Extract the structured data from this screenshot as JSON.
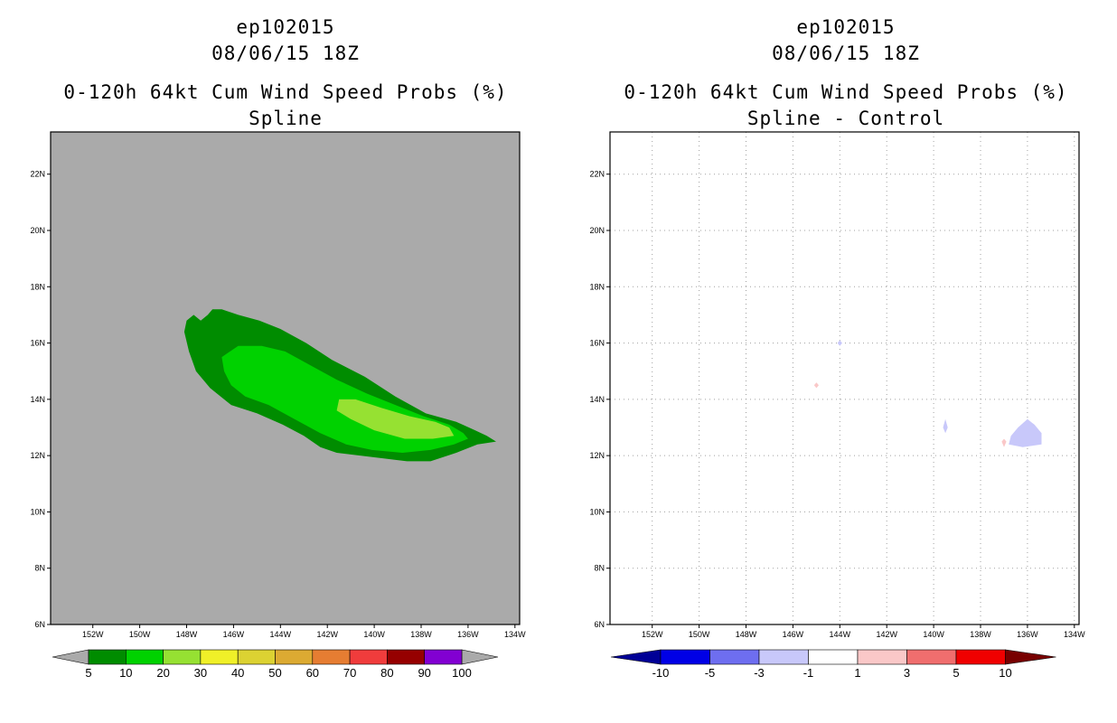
{
  "chart_data": [
    {
      "type": "heatmap",
      "storm_id": "ep102015",
      "date": "08/06/15 18Z",
      "title": "0-120h 64kt Cum Wind Speed Probs (%)",
      "subtitle": "Spline",
      "x_ticks": [
        "152W",
        "150W",
        "148W",
        "146W",
        "144W",
        "142W",
        "140W",
        "138W",
        "136W",
        "134W"
      ],
      "x_values": [
        -152,
        -150,
        -148,
        -146,
        -144,
        -142,
        -140,
        -138,
        -136,
        -134
      ],
      "y_ticks": [
        "6N",
        "8N",
        "10N",
        "12N",
        "14N",
        "16N",
        "18N",
        "20N",
        "22N"
      ],
      "y_values": [
        6,
        8,
        10,
        12,
        14,
        16,
        18,
        20,
        22
      ],
      "xlim": [
        -153.8,
        -133.8
      ],
      "ylim": [
        6,
        23.5
      ],
      "background_color": "#aaaaaa",
      "colorbar": {
        "labels": [
          "5",
          "10",
          "20",
          "30",
          "40",
          "50",
          "60",
          "70",
          "80",
          "90",
          "100"
        ],
        "colors": [
          "#008c00",
          "#00d200",
          "#96e132",
          "#f0f028",
          "#dcd232",
          "#dcaa32",
          "#e67d32",
          "#f03c3c",
          "#960000",
          "#8200d2"
        ],
        "end_color": "#aaaaaa"
      },
      "contours": [
        {
          "level": "5-10",
          "color": "#008c00",
          "points": [
            [
              -148.0,
              16.8
            ],
            [
              -147.7,
              17.0
            ],
            [
              -147.4,
              16.8
            ],
            [
              -147.1,
              17.0
            ],
            [
              -146.9,
              17.2
            ],
            [
              -146.5,
              17.2
            ],
            [
              -145.8,
              17.0
            ],
            [
              -144.9,
              16.8
            ],
            [
              -144.0,
              16.5
            ],
            [
              -142.9,
              16.0
            ],
            [
              -141.8,
              15.4
            ],
            [
              -140.4,
              14.8
            ],
            [
              -139.1,
              14.1
            ],
            [
              -137.8,
              13.5
            ],
            [
              -136.5,
              13.2
            ],
            [
              -135.7,
              12.9
            ],
            [
              -135.2,
              12.7
            ],
            [
              -134.8,
              12.5
            ],
            [
              -135.6,
              12.4
            ],
            [
              -136.5,
              12.1
            ],
            [
              -137.6,
              11.8
            ],
            [
              -138.6,
              11.8
            ],
            [
              -139.6,
              11.9
            ],
            [
              -140.6,
              12.0
            ],
            [
              -141.6,
              12.1
            ],
            [
              -142.3,
              12.3
            ],
            [
              -143.0,
              12.7
            ],
            [
              -143.9,
              13.1
            ],
            [
              -145.0,
              13.5
            ],
            [
              -146.1,
              13.8
            ],
            [
              -147.0,
              14.4
            ],
            [
              -147.6,
              15.0
            ],
            [
              -147.9,
              15.7
            ],
            [
              -148.1,
              16.4
            ]
          ]
        },
        {
          "level": "10-20",
          "color": "#00d200",
          "points": [
            [
              -146.5,
              15.5
            ],
            [
              -145.8,
              15.9
            ],
            [
              -144.8,
              15.9
            ],
            [
              -143.8,
              15.7
            ],
            [
              -142.7,
              15.2
            ],
            [
              -141.6,
              14.7
            ],
            [
              -140.3,
              14.2
            ],
            [
              -139.1,
              13.8
            ],
            [
              -137.9,
              13.4
            ],
            [
              -136.8,
              13.1
            ],
            [
              -136.2,
              12.8
            ],
            [
              -136.0,
              12.6
            ],
            [
              -136.6,
              12.4
            ],
            [
              -137.6,
              12.2
            ],
            [
              -138.8,
              12.1
            ],
            [
              -140.1,
              12.2
            ],
            [
              -141.2,
              12.4
            ],
            [
              -142.3,
              12.8
            ],
            [
              -143.4,
              13.3
            ],
            [
              -144.5,
              13.8
            ],
            [
              -145.5,
              14.1
            ],
            [
              -146.1,
              14.5
            ],
            [
              -146.4,
              15.0
            ]
          ]
        },
        {
          "level": "20-30",
          "color": "#96e132",
          "points": [
            [
              -141.5,
              14.0
            ],
            [
              -140.8,
              14.0
            ],
            [
              -139.7,
              13.7
            ],
            [
              -138.5,
              13.4
            ],
            [
              -137.4,
              13.2
            ],
            [
              -136.8,
              13.0
            ],
            [
              -136.6,
              12.7
            ],
            [
              -137.5,
              12.6
            ],
            [
              -138.7,
              12.6
            ],
            [
              -140.0,
              12.9
            ],
            [
              -141.0,
              13.3
            ],
            [
              -141.6,
              13.6
            ]
          ]
        }
      ]
    },
    {
      "type": "heatmap",
      "storm_id": "ep102015",
      "date": "08/06/15 18Z",
      "title": "0-120h 64kt Cum Wind Speed Probs (%)",
      "subtitle": "Spline - Control",
      "x_ticks": [
        "152W",
        "150W",
        "148W",
        "146W",
        "144W",
        "142W",
        "140W",
        "138W",
        "136W",
        "134W"
      ],
      "x_values": [
        -152,
        -150,
        -148,
        -146,
        -144,
        -142,
        -140,
        -138,
        -136,
        -134
      ],
      "y_ticks": [
        "6N",
        "8N",
        "10N",
        "12N",
        "14N",
        "16N",
        "18N",
        "20N",
        "22N"
      ],
      "y_values": [
        6,
        8,
        10,
        12,
        14,
        16,
        18,
        20,
        22
      ],
      "xlim": [
        -153.8,
        -133.8
      ],
      "ylim": [
        6,
        23.5
      ],
      "grid": true,
      "background_color": "#ffffff",
      "colorbar": {
        "labels": [
          "-10",
          "-5",
          "-3",
          "-1",
          "1",
          "3",
          "5",
          "10"
        ],
        "colors": [
          "#0000e6",
          "#6e6ef0",
          "#c8c8fa",
          "#ffffff",
          "#fac8c8",
          "#f06e6e",
          "#f00000"
        ],
        "low_end_color": "#000096",
        "high_end_color": "#780000"
      },
      "contours": [
        {
          "level": "-3 to -1",
          "color": "#c8c8fa",
          "points": [
            [
              -136.0,
              13.3
            ],
            [
              -135.7,
              13.1
            ],
            [
              -135.4,
              12.8
            ],
            [
              -135.4,
              12.4
            ],
            [
              -136.2,
              12.3
            ],
            [
              -136.8,
              12.4
            ],
            [
              -136.7,
              12.7
            ],
            [
              -136.4,
              13.0
            ]
          ]
        },
        {
          "level": "-3 to -1",
          "color": "#c8c8fa",
          "points": [
            [
              -139.5,
              13.3
            ],
            [
              -139.4,
              13.0
            ],
            [
              -139.5,
              12.8
            ],
            [
              -139.6,
              13.0
            ]
          ]
        },
        {
          "level": "-3 to -1",
          "color": "#c8c8fa",
          "points": [
            [
              -144.0,
              16.1
            ],
            [
              -143.9,
              16.0
            ],
            [
              -144.0,
              15.9
            ],
            [
              -144.1,
              16.0
            ]
          ]
        },
        {
          "level": "1 to 3",
          "color": "#fac8c8",
          "points": [
            [
              -145.0,
              14.6
            ],
            [
              -144.9,
              14.5
            ],
            [
              -145.0,
              14.4
            ],
            [
              -145.1,
              14.5
            ]
          ]
        },
        {
          "level": "1 to 3",
          "color": "#fac8c8",
          "points": [
            [
              -137.0,
              12.6
            ],
            [
              -136.9,
              12.5
            ],
            [
              -137.0,
              12.3
            ],
            [
              -137.1,
              12.5
            ]
          ]
        }
      ]
    }
  ]
}
